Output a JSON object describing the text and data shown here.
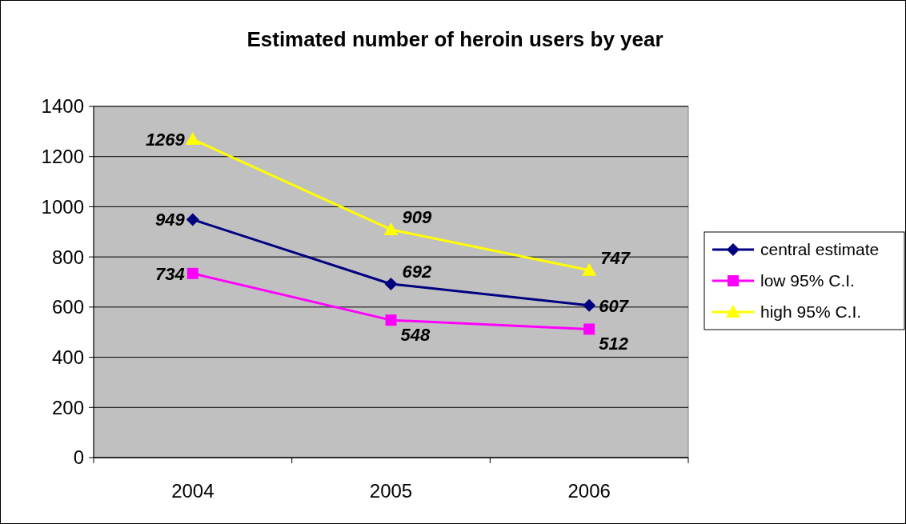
{
  "chart_data": {
    "type": "line",
    "title": "Estimated number of heroin users by year",
    "categories": [
      "2004",
      "2005",
      "2006"
    ],
    "series": [
      {
        "name": "central estimate",
        "color": "#000080",
        "values": [
          949,
          692,
          607
        ],
        "marker": "diamond"
      },
      {
        "name": "low 95% C.I.",
        "color": "#ff00ff",
        "values": [
          734,
          548,
          512
        ],
        "marker": "square"
      },
      {
        "name": "high 95% C.I.",
        "color": "#ffff00",
        "values": [
          1269,
          909,
          747
        ],
        "marker": "triangle"
      }
    ],
    "ylim": [
      0,
      1400
    ],
    "yticks": [
      0,
      200,
      400,
      600,
      800,
      1000,
      1200,
      1400
    ],
    "grid": "y",
    "legend": "right",
    "data_labels": true,
    "line_style": "solid"
  }
}
